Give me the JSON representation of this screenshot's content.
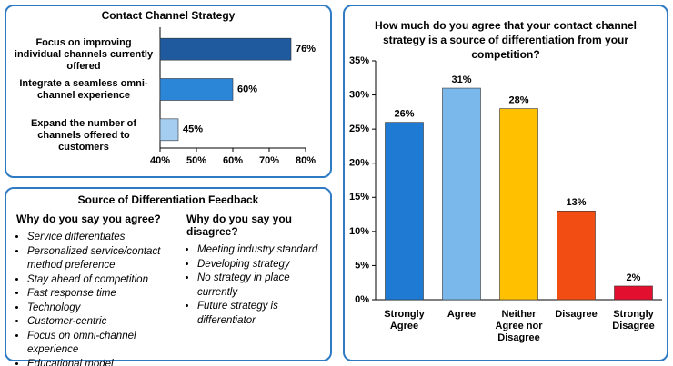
{
  "chart_data": [
    {
      "type": "hbar",
      "title": "Contact Channel Strategy",
      "categories": [
        "Focus on improving individual channels currently offered",
        "Integrate a seamless omni-channel experience",
        "Expand the number of channels offered to customers"
      ],
      "values": [
        76,
        60,
        45
      ],
      "value_labels": [
        "76%",
        "60%",
        "45%"
      ],
      "colors": [
        "#1f5a9e",
        "#2b86d8",
        "#a4cdf0"
      ],
      "xlim": [
        40,
        80
      ],
      "xticks": [
        {
          "value": 40,
          "label": "40%"
        },
        {
          "value": 50,
          "label": "50%"
        },
        {
          "value": 60,
          "label": "60%"
        },
        {
          "value": 70,
          "label": "70%"
        },
        {
          "value": 80,
          "label": "80%"
        }
      ]
    },
    {
      "type": "bar",
      "title": "How much do you agree that your contact channel strategy is a source of differentiation from your competition?",
      "categories": [
        "Strongly Agree",
        "Agree",
        "Neither Agree nor Disagree",
        "Disagree",
        "Strongly Disagree"
      ],
      "values": [
        26,
        31,
        28,
        13,
        2
      ],
      "value_labels": [
        "26%",
        "31%",
        "28%",
        "13%",
        "2%"
      ],
      "colors": [
        "#1f7ad3",
        "#7ab8ec",
        "#ffc000",
        "#f24d12",
        "#e2102e"
      ],
      "ylim": [
        0,
        35
      ],
      "yticks": [
        {
          "value": 0,
          "label": "0%"
        },
        {
          "value": 5,
          "label": "5%"
        },
        {
          "value": 10,
          "label": "10%"
        },
        {
          "value": 15,
          "label": "15%"
        },
        {
          "value": 20,
          "label": "20%"
        },
        {
          "value": 25,
          "label": "25%"
        },
        {
          "value": 30,
          "label": "30%"
        },
        {
          "value": 35,
          "label": "35%"
        }
      ]
    }
  ],
  "feedback": {
    "title": "Source of Differentiation Feedback",
    "columns": [
      {
        "heading": "Why do you say you agree?",
        "items": [
          "Service differentiates",
          "Personalized service/contact method preference",
          "Stay ahead of competition",
          "Fast response time",
          "Technology",
          "Customer-centric",
          "Focus on omni-channel experience",
          "Educational model"
        ]
      },
      {
        "heading": "Why do you say you disagree?",
        "items": [
          "Meeting industry standard",
          "Developing strategy",
          "No strategy in place currently",
          "Future strategy is differentiator"
        ]
      }
    ]
  }
}
